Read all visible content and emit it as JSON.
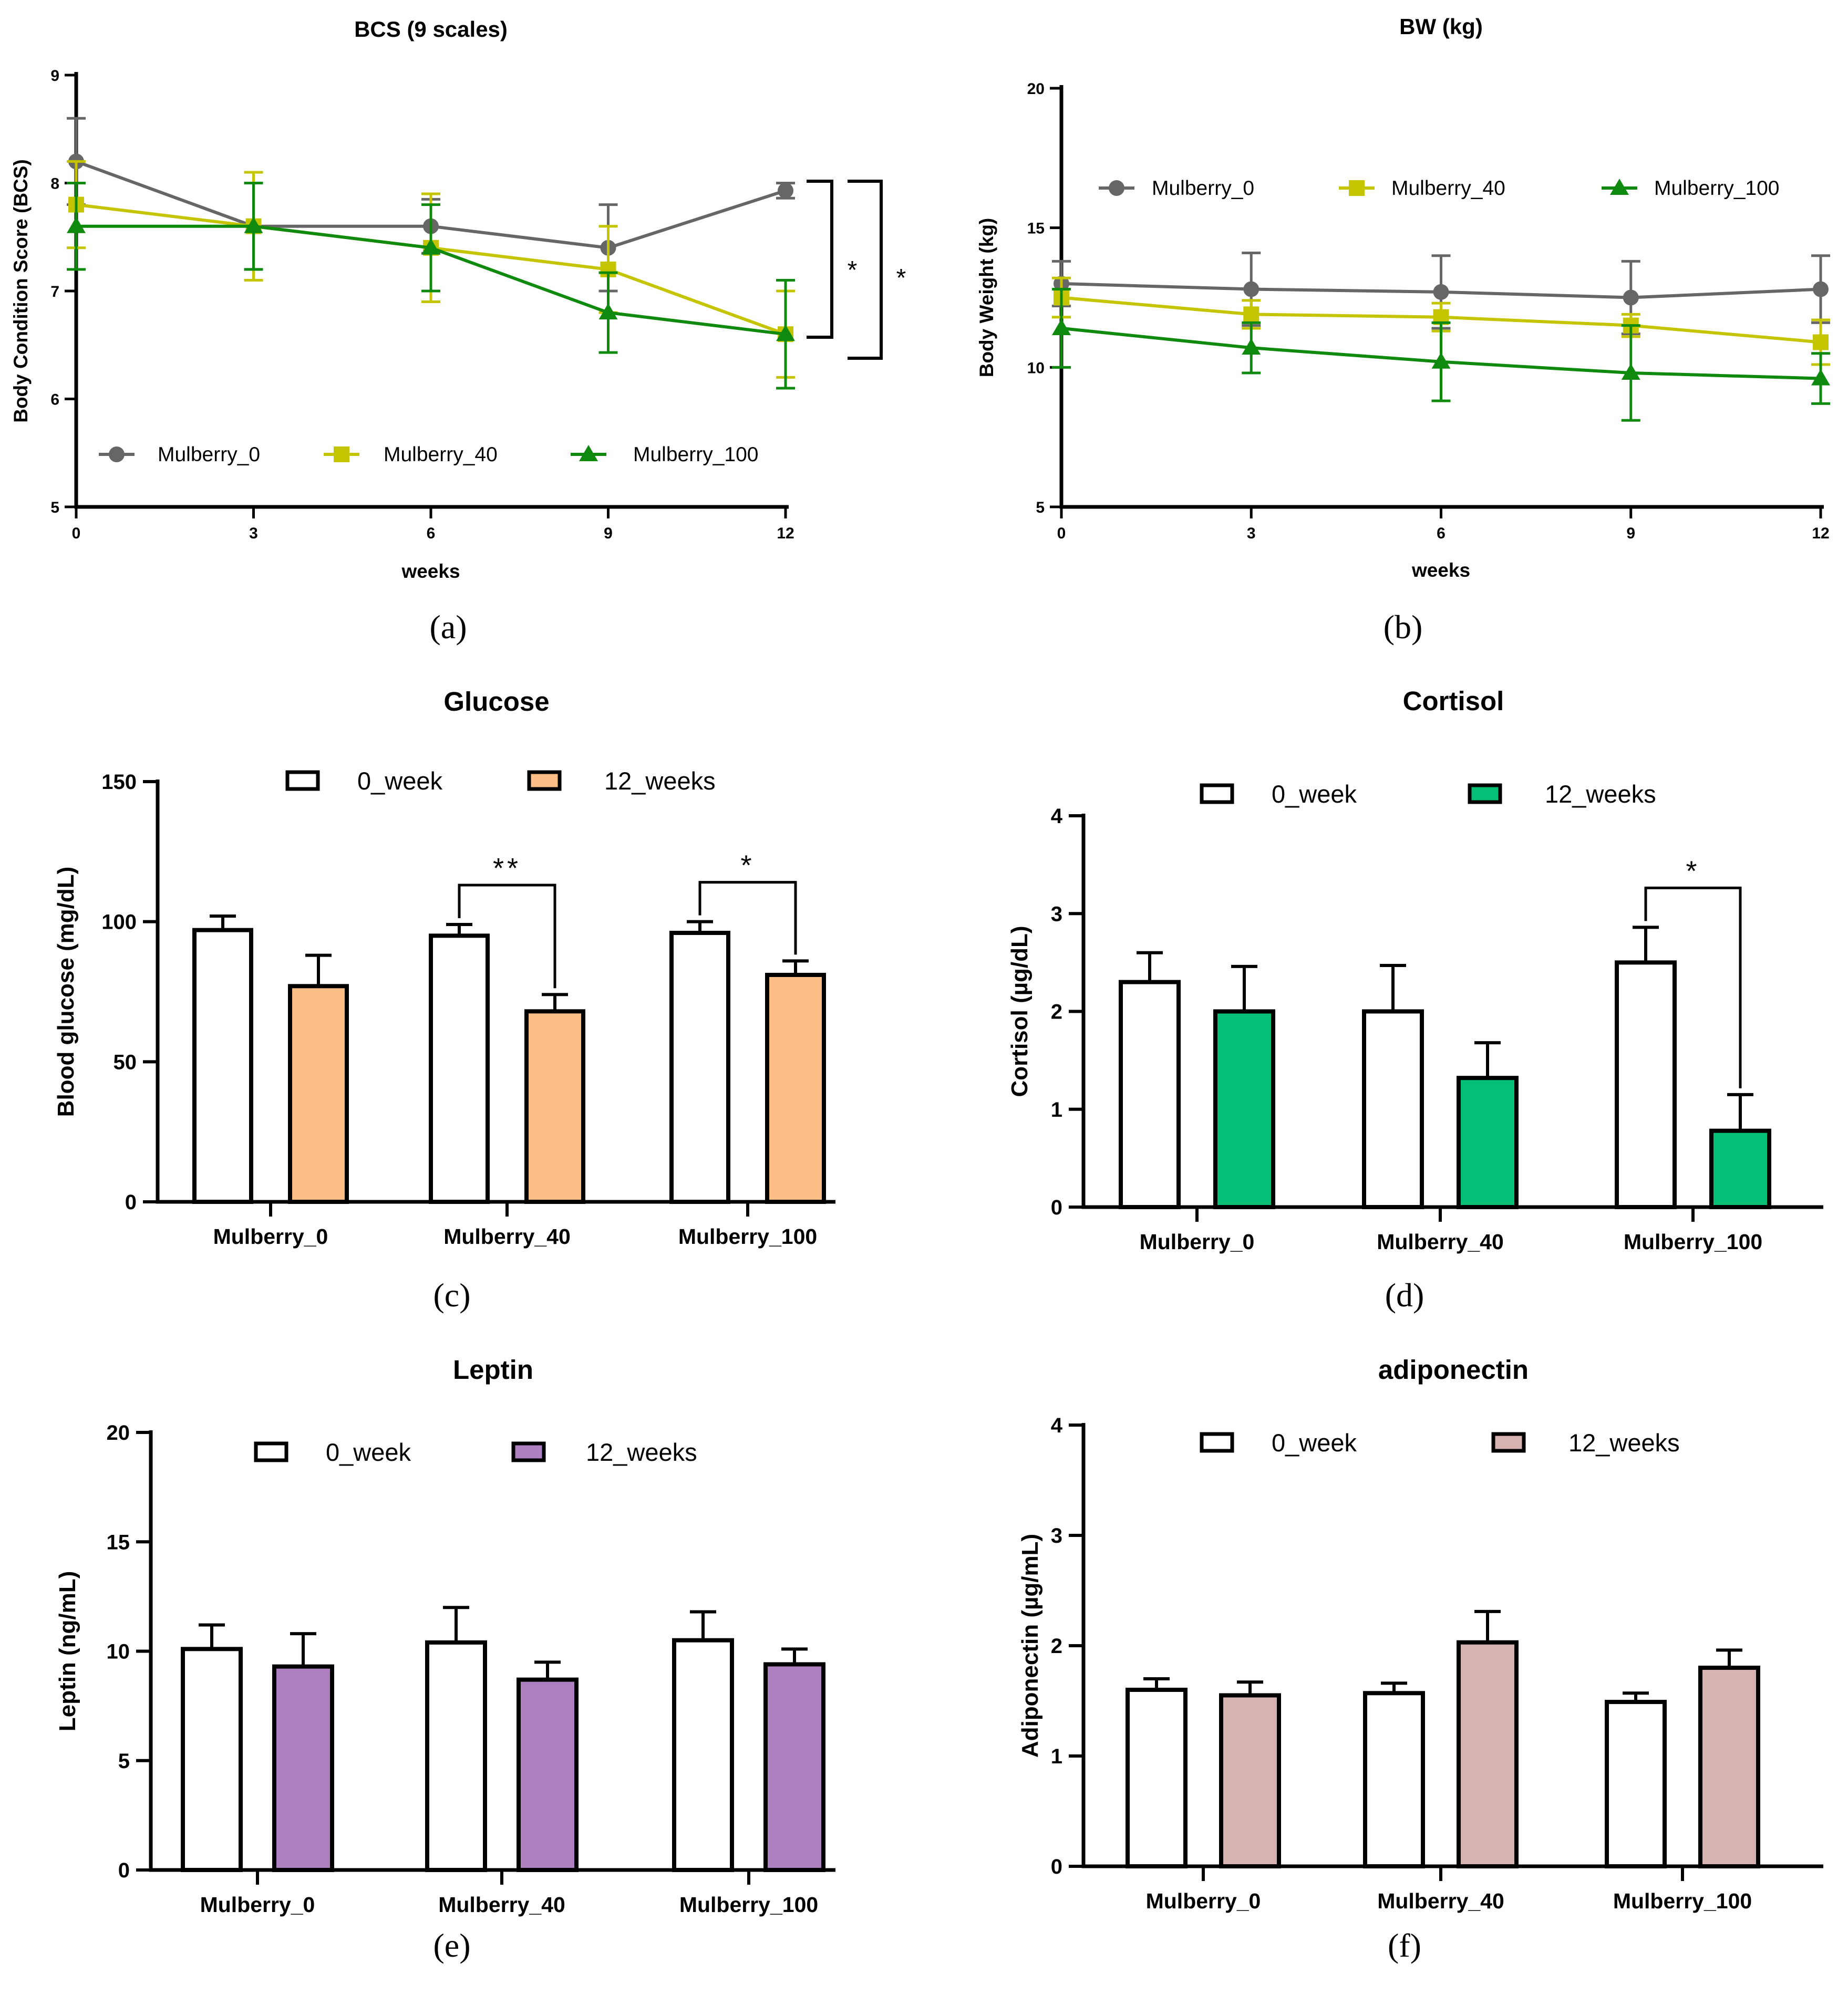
{
  "chart_data": [
    {
      "id": "a",
      "type": "line",
      "panel_label": "(a)",
      "title": "BCS (9 scales)",
      "xlabel": "weeks",
      "ylabel": "Body Condition Score (BCS)",
      "x": [
        0,
        3,
        6,
        9,
        12
      ],
      "xlim": [
        0,
        12
      ],
      "ylim": [
        5,
        9
      ],
      "yticks": [
        5,
        6,
        7,
        8,
        9
      ],
      "legend_position": "bottom",
      "series": [
        {
          "name": "Mulberry_0",
          "color": "#666666",
          "marker": "circle",
          "values": [
            8.2,
            7.6,
            7.6,
            7.4,
            7.93
          ],
          "errors": [
            0.4,
            0.4,
            0.25,
            0.4,
            0.07
          ]
        },
        {
          "name": "Mulberry_40",
          "color": "#c4c400",
          "marker": "square",
          "values": [
            7.8,
            7.6,
            7.4,
            7.2,
            6.6
          ],
          "errors": [
            0.4,
            0.5,
            0.5,
            0.4,
            0.4
          ]
        },
        {
          "name": "Mulberry_100",
          "color": "#0f8a0f",
          "marker": "triangle",
          "values": [
            7.6,
            7.6,
            7.4,
            6.8,
            6.6
          ],
          "errors": [
            0.4,
            0.4,
            0.4,
            0.37,
            0.5
          ]
        }
      ],
      "annotations": [
        "*",
        "*"
      ]
    },
    {
      "id": "b",
      "type": "line",
      "panel_label": "(b)",
      "title": "BW (kg)",
      "xlabel": "weeks",
      "ylabel": "Body Weight (kg)",
      "x": [
        0,
        3,
        6,
        9,
        12
      ],
      "xlim": [
        0,
        12
      ],
      "ylim": [
        5,
        20
      ],
      "yticks": [
        5,
        10,
        15,
        20
      ],
      "legend_position": "top",
      "series": [
        {
          "name": "Mulberry_0",
          "color": "#666666",
          "marker": "circle",
          "values": [
            13.0,
            12.8,
            12.7,
            12.5,
            12.8
          ],
          "errors": [
            0.8,
            1.3,
            1.3,
            1.3,
            1.2
          ]
        },
        {
          "name": "Mulberry_40",
          "color": "#c4c400",
          "marker": "square",
          "values": [
            12.5,
            11.9,
            11.8,
            11.5,
            10.9
          ],
          "errors": [
            0.7,
            0.5,
            0.5,
            0.4,
            0.8
          ]
        },
        {
          "name": "Mulberry_100",
          "color": "#0f8a0f",
          "marker": "triangle",
          "values": [
            11.4,
            10.7,
            10.2,
            9.8,
            9.6
          ],
          "errors": [
            1.4,
            0.9,
            1.4,
            1.7,
            0.9
          ]
        }
      ]
    },
    {
      "id": "c",
      "type": "bar",
      "panel_label": "(c)",
      "title": "Glucose",
      "ylabel": "Blood glucose (mg/dL)",
      "categories": [
        "Mulberry_0",
        "Mulberry_40",
        "Mulberry_100"
      ],
      "ylim": [
        0,
        150
      ],
      "yticks": [
        0,
        50,
        100,
        150
      ],
      "legend_position": "top",
      "series": [
        {
          "name": "0_week",
          "color": "#ffffff",
          "values": [
            97,
            95,
            96
          ],
          "errors": [
            5,
            4,
            4
          ]
        },
        {
          "name": "12_weeks",
          "color": "#fdbf85",
          "values": [
            77,
            68,
            81
          ],
          "errors": [
            11,
            6,
            5
          ]
        }
      ],
      "significance": [
        {
          "category": "Mulberry_40",
          "label": "**"
        },
        {
          "category": "Mulberry_100",
          "label": "*"
        }
      ]
    },
    {
      "id": "d",
      "type": "bar",
      "panel_label": "(d)",
      "title": "Cortisol",
      "ylabel": "Cortisol (µg/dL)",
      "categories": [
        "Mulberry_0",
        "Mulberry_40",
        "Mulberry_100"
      ],
      "ylim": [
        0,
        4
      ],
      "yticks": [
        0,
        1,
        2,
        3,
        4
      ],
      "legend_position": "top",
      "series": [
        {
          "name": "0_week",
          "color": "#ffffff",
          "values": [
            2.3,
            2.0,
            2.5
          ],
          "errors": [
            0.3,
            0.47,
            0.36
          ]
        },
        {
          "name": "12_weeks",
          "color": "#06bf76",
          "values": [
            2.0,
            1.32,
            0.78
          ],
          "errors": [
            0.46,
            0.36,
            0.37
          ]
        }
      ],
      "significance": [
        {
          "category": "Mulberry_100",
          "label": "*"
        }
      ]
    },
    {
      "id": "e",
      "type": "bar",
      "panel_label": "(e)",
      "title": "Leptin",
      "ylabel": "Leptin (ng/mL)",
      "categories": [
        "Mulberry_0",
        "Mulberry_40",
        "Mulberry_100"
      ],
      "ylim": [
        0,
        20
      ],
      "yticks": [
        0,
        5,
        10,
        15,
        20
      ],
      "legend_position": "top",
      "series": [
        {
          "name": "0_week",
          "color": "#ffffff",
          "values": [
            10.1,
            10.4,
            10.5
          ],
          "errors": [
            1.1,
            1.6,
            1.3
          ]
        },
        {
          "name": "12_weeks",
          "color": "#ae80c0",
          "values": [
            9.3,
            8.7,
            9.4
          ],
          "errors": [
            1.5,
            0.8,
            0.7
          ]
        }
      ]
    },
    {
      "id": "f",
      "type": "bar",
      "panel_label": "(f)",
      "title": "adiponectin",
      "ylabel": "Adiponectin (µg/mL)",
      "categories": [
        "Mulberry_0",
        "Mulberry_40",
        "Mulberry_100"
      ],
      "ylim": [
        0,
        4
      ],
      "yticks": [
        0,
        1,
        2,
        3,
        4
      ],
      "legend_position": "top",
      "series": [
        {
          "name": "0_week",
          "color": "#ffffff",
          "values": [
            1.6,
            1.57,
            1.49
          ],
          "errors": [
            0.1,
            0.09,
            0.08
          ]
        },
        {
          "name": "12_weeks",
          "color": "#d6b2b0",
          "values": [
            1.55,
            2.03,
            1.8
          ],
          "errors": [
            0.12,
            0.28,
            0.16
          ]
        }
      ]
    }
  ]
}
